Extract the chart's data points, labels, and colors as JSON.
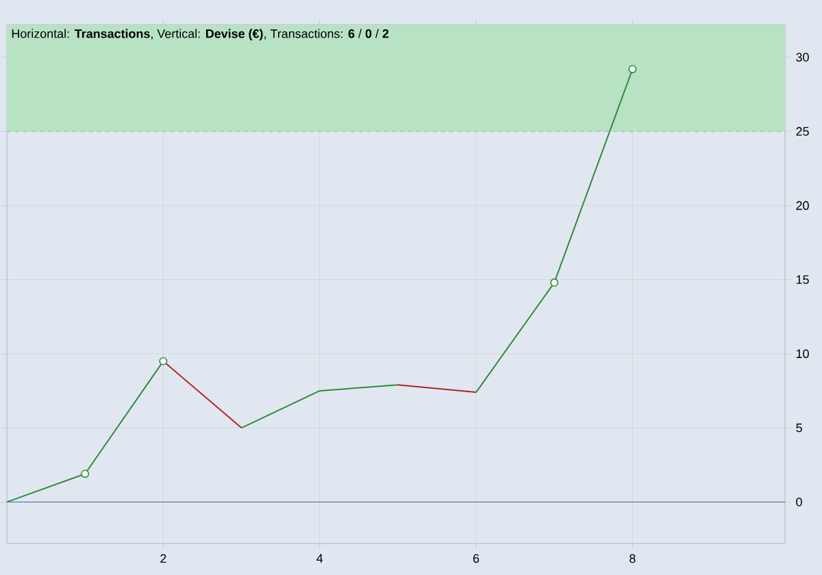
{
  "chart_data": {
    "type": "line",
    "title": "Horizontal: **Transactions**, Vertical: **Devise (€)**, Transactions: **6** / **0** / **2**",
    "series": [
      {
        "color": "#2e8b3a",
        "x": [
          0,
          1,
          2
        ],
        "values": [
          0,
          1.9,
          9.5
        ]
      },
      {
        "color": "#b22222",
        "x": [
          2,
          3
        ],
        "values": [
          9.5,
          5.0
        ]
      },
      {
        "color": "#2e8b3a",
        "x": [
          3,
          4,
          5
        ],
        "values": [
          5.0,
          7.5,
          7.9
        ]
      },
      {
        "color": "#b22222",
        "x": [
          5,
          6
        ],
        "values": [
          7.9,
          7.4
        ]
      },
      {
        "color": "#2e8b3a",
        "x": [
          6,
          7,
          8
        ],
        "values": [
          7.4,
          14.8,
          29.2
        ]
      },
      {
        "type": "scatter",
        "color": "#2e8b3a",
        "x": [
          1,
          2,
          7,
          8
        ],
        "values": [
          1.9,
          9.5,
          14.8,
          29.2
        ],
        "marker": "circle"
      }
    ],
    "xlim": [
      0,
      9.95
    ],
    "ylim": [
      -2.8,
      32.2
    ],
    "xticks": [
      2,
      4,
      6,
      8
    ],
    "yticks": [
      0,
      5,
      10,
      15,
      20,
      25,
      30
    ],
    "grid": true,
    "ref_lines": [
      {
        "axis": "y",
        "value": 0,
        "color": "#2a3aa0",
        "line_style": "solid"
      },
      {
        "axis": "y",
        "value": 25,
        "color": "#7fb88f",
        "line_style": "dashed"
      }
    ],
    "bands": [
      {
        "axis": "y",
        "from": 25,
        "to": 32.2,
        "color": "#b8e2c4"
      }
    ]
  }
}
